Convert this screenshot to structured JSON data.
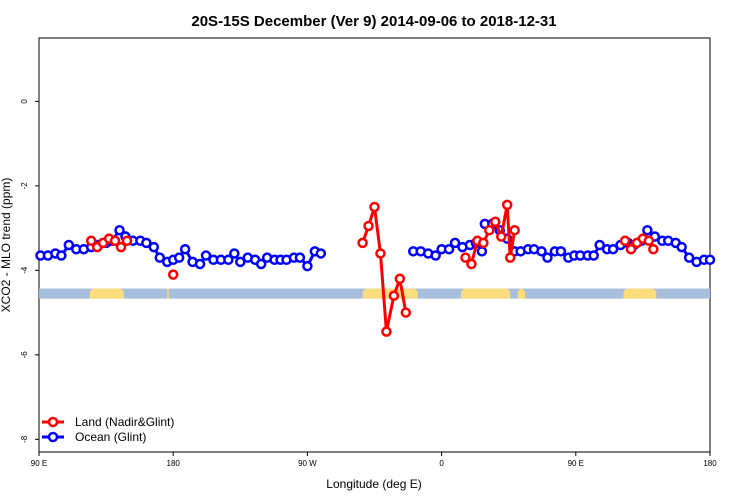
{
  "chart_data": {
    "type": "line",
    "title": "20S-15S December (Ver 9)   2014-09-06 to 2018-12-31",
    "xlabel": "Longitude (deg E)",
    "ylabel": "XCO2 - MLO trend (ppm)",
    "xlim": [
      90,
      540
    ],
    "ylim": [
      -8.3,
      1.5
    ],
    "x_ticks": [
      {
        "value": 90,
        "label": "90 E"
      },
      {
        "value": 180,
        "label": "180"
      },
      {
        "value": 270,
        "label": "90 W"
      },
      {
        "value": 360,
        "label": "0"
      },
      {
        "value": 450,
        "label": "90 E"
      },
      {
        "value": 540,
        "label": "180"
      }
    ],
    "y_ticks": [
      {
        "value": 0,
        "label": "0"
      },
      {
        "value": -2,
        "label": "-2"
      },
      {
        "value": -4,
        "label": "-4"
      },
      {
        "value": -6,
        "label": "-6"
      },
      {
        "value": -8,
        "label": "-8"
      }
    ],
    "surface_band": {
      "y": -4.55,
      "ocean_color": "#a6bddb",
      "land_color": "#fddc7c",
      "land_ranges": [
        [
          124,
          147
        ],
        [
          176,
          177
        ],
        [
          307,
          344
        ],
        [
          373,
          406
        ],
        [
          411,
          416
        ],
        [
          482,
          504
        ]
      ]
    },
    "series": [
      {
        "name": "Land (Nadir&Glint)",
        "color": "#ff0000",
        "points": [
          [
            125,
            -3.3
          ],
          [
            129,
            -3.45
          ],
          [
            133,
            -3.35
          ],
          [
            137,
            -3.25
          ],
          [
            141,
            -3.3
          ],
          [
            145,
            -3.45
          ],
          [
            149,
            -3.3
          ],
          [
            null,
            null
          ],
          [
            180,
            -4.1
          ],
          [
            null,
            null
          ],
          [
            307,
            -3.35
          ],
          [
            311,
            -2.95
          ],
          [
            315,
            -2.5
          ],
          [
            319,
            -3.6
          ],
          [
            323,
            -5.45
          ],
          [
            328,
            -4.6
          ],
          [
            332,
            -4.2
          ],
          [
            336,
            -5.0
          ],
          [
            null,
            null
          ],
          [
            376,
            -3.7
          ],
          [
            380,
            -3.85
          ],
          [
            384,
            -3.3
          ],
          [
            388,
            -3.35
          ],
          [
            392,
            -3.05
          ],
          [
            396,
            -2.85
          ],
          [
            400,
            -3.2
          ],
          [
            404,
            -2.45
          ],
          [
            406,
            -3.7
          ],
          [
            409,
            -3.05
          ],
          [
            null,
            null
          ],
          [
            483,
            -3.3
          ],
          [
            487,
            -3.5
          ],
          [
            491,
            -3.35
          ],
          [
            495,
            -3.25
          ],
          [
            499,
            -3.3
          ],
          [
            502,
            -3.5
          ]
        ]
      },
      {
        "name": "Ocean (Glint)",
        "color": "#0000ff",
        "points": [
          [
            91,
            -3.65
          ],
          [
            96,
            -3.65
          ],
          [
            101,
            -3.6
          ],
          [
            105,
            -3.65
          ],
          [
            110,
            -3.4
          ],
          [
            115,
            -3.5
          ],
          [
            120,
            -3.5
          ],
          [
            125,
            -3.45
          ],
          [
            130,
            -3.4
          ],
          [
            135,
            -3.35
          ],
          [
            139,
            -3.3
          ],
          [
            144,
            -3.05
          ],
          [
            148,
            -3.2
          ],
          [
            153,
            -3.3
          ],
          [
            158,
            -3.3
          ],
          [
            162,
            -3.35
          ],
          [
            167,
            -3.45
          ],
          [
            171,
            -3.7
          ],
          [
            176,
            -3.8
          ],
          [
            180,
            -3.75
          ],
          [
            184,
            -3.7
          ],
          [
            188,
            -3.5
          ],
          [
            193,
            -3.8
          ],
          [
            198,
            -3.85
          ],
          [
            202,
            -3.65
          ],
          [
            207,
            -3.75
          ],
          [
            212,
            -3.75
          ],
          [
            217,
            -3.75
          ],
          [
            221,
            -3.6
          ],
          [
            225,
            -3.8
          ],
          [
            230,
            -3.7
          ],
          [
            235,
            -3.75
          ],
          [
            239,
            -3.85
          ],
          [
            243,
            -3.7
          ],
          [
            248,
            -3.75
          ],
          [
            252,
            -3.75
          ],
          [
            256,
            -3.75
          ],
          [
            261,
            -3.7
          ],
          [
            265,
            -3.7
          ],
          [
            270,
            -3.9
          ],
          [
            275,
            -3.55
          ],
          [
            279,
            -3.6
          ],
          [
            null,
            null
          ],
          [
            341,
            -3.55
          ],
          [
            346,
            -3.55
          ],
          [
            351,
            -3.6
          ],
          [
            356,
            -3.65
          ],
          [
            360,
            -3.5
          ],
          [
            365,
            -3.5
          ],
          [
            369,
            -3.35
          ],
          [
            374,
            -3.45
          ],
          [
            379,
            -3.4
          ],
          [
            383,
            -3.35
          ],
          [
            387,
            -3.55
          ],
          [
            null,
            null
          ],
          [
            389,
            -2.9
          ],
          [
            394,
            -2.9
          ],
          [
            399,
            -3.05
          ],
          [
            404,
            -3.25
          ],
          [
            409,
            -3.55
          ],
          [
            413,
            -3.55
          ],
          [
            418,
            -3.5
          ],
          [
            422,
            -3.5
          ],
          [
            427,
            -3.55
          ],
          [
            431,
            -3.7
          ],
          [
            436,
            -3.55
          ],
          [
            440,
            -3.55
          ],
          [
            445,
            -3.7
          ],
          [
            449,
            -3.65
          ],
          [
            453,
            -3.65
          ],
          [
            458,
            -3.65
          ],
          [
            462,
            -3.65
          ],
          [
            466,
            -3.4
          ],
          [
            471,
            -3.5
          ],
          [
            475,
            -3.5
          ],
          [
            480,
            -3.4
          ],
          [
            485,
            -3.35
          ],
          [
            489,
            -3.4
          ],
          [
            494,
            -3.3
          ],
          [
            498,
            -3.05
          ],
          [
            503,
            -3.2
          ],
          [
            508,
            -3.3
          ],
          [
            512,
            -3.3
          ],
          [
            517,
            -3.35
          ],
          [
            521,
            -3.45
          ],
          [
            526,
            -3.7
          ],
          [
            531,
            -3.8
          ],
          [
            536,
            -3.75
          ],
          [
            540,
            -3.75
          ]
        ]
      }
    ],
    "legend": {
      "placement": "bottom-left",
      "entries": [
        {
          "label": "Land (Nadir&Glint)",
          "color": "#ff0000"
        },
        {
          "label": "Ocean (Glint)",
          "color": "#0000ff"
        }
      ]
    }
  }
}
